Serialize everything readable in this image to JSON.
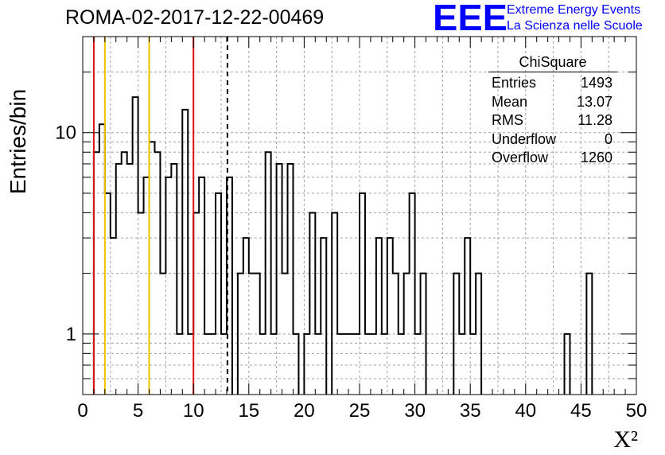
{
  "header": {
    "title": "ROMA-02-2017-12-22-00469",
    "logo_text": "EEE",
    "logo_line1": "Extreme Energy Events",
    "logo_line2": "La Scienza nelle Scuole"
  },
  "stats_box": {
    "title": "ChiSquare",
    "rows": [
      {
        "label": "Entries",
        "value": "1493"
      },
      {
        "label": "Mean",
        "value": "13.07"
      },
      {
        "label": "RMS",
        "value": "11.28"
      },
      {
        "label": "Underflow",
        "value": "0"
      },
      {
        "label": "Overflow",
        "value": "1260"
      }
    ]
  },
  "colors": {
    "red_line": "#e01010",
    "yellow_line": "#f0c000",
    "histogram": "#000000",
    "grid": "#a0a0a0",
    "logo_blue": "#0000ff"
  },
  "chart_data": {
    "type": "bar",
    "histogram_style": "step",
    "title": "ROMA-02-2017-12-22-00469",
    "xlabel": "X²",
    "ylabel": "Entries/bin",
    "xlim": [
      0,
      50
    ],
    "ylim": [
      0.5,
      30
    ],
    "y_scale": "log",
    "grid": true,
    "bin_width": 0.5,
    "x_ticks": [
      "0",
      "5",
      "10",
      "15",
      "20",
      "25",
      "30",
      "35",
      "40",
      "45",
      "50"
    ],
    "y_ticks": [
      "1",
      "10"
    ],
    "values": [
      0,
      0,
      8,
      11,
      5,
      3,
      7,
      8,
      7,
      15,
      4,
      6,
      9,
      8,
      2,
      6,
      7,
      1,
      13,
      1,
      4,
      6,
      1,
      1,
      5,
      1,
      6,
      0,
      2,
      3,
      2,
      2,
      1,
      8,
      1,
      7,
      2,
      7,
      1,
      0,
      1,
      4,
      1,
      3,
      0,
      4,
      1,
      1,
      1,
      1,
      5,
      1,
      1,
      3,
      1,
      3,
      2,
      1,
      2,
      5,
      1,
      2,
      0,
      0,
      0,
      0,
      0,
      2,
      1,
      3,
      1,
      2,
      0,
      0,
      0,
      0,
      0,
      0,
      0,
      0,
      0,
      0,
      0,
      0,
      0,
      0,
      0,
      1,
      0,
      0,
      0,
      2,
      0,
      0,
      0,
      0,
      0,
      0,
      0,
      0
    ],
    "vertical_lines": [
      {
        "x": 1,
        "color": "red",
        "style": "solid"
      },
      {
        "x": 2,
        "color": "yellow",
        "style": "solid"
      },
      {
        "x": 6,
        "color": "yellow",
        "style": "solid"
      },
      {
        "x": 10,
        "color": "red",
        "style": "solid"
      },
      {
        "x": 13.07,
        "color": "black",
        "style": "dashed"
      }
    ]
  }
}
